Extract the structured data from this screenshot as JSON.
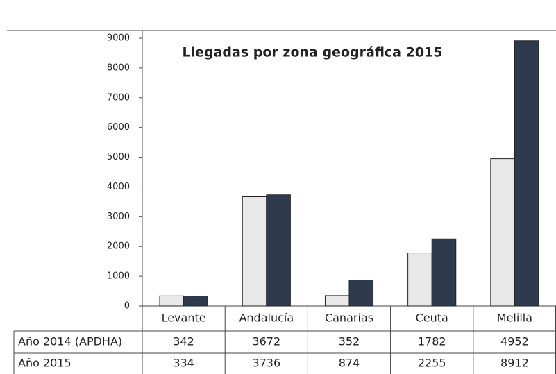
{
  "chart_data": {
    "type": "bar",
    "title": "Llegadas por zona geográfica 2015",
    "categories": [
      "Levante",
      "Andalucía",
      "Canarias",
      "Ceuta",
      "Melilla"
    ],
    "series": [
      {
        "name": "Año 2014 (APDHA)",
        "color": "#e8e8e8",
        "values": [
          342,
          3672,
          352,
          1782,
          4952
        ]
      },
      {
        "name": "Año 2015",
        "color": "#2e3b4e",
        "values": [
          334,
          3736,
          874,
          2255,
          8912
        ]
      }
    ],
    "ylim": [
      0,
      9000
    ],
    "yticks": [
      0,
      1000,
      2000,
      3000,
      4000,
      5000,
      6000,
      7000,
      8000,
      9000
    ],
    "grid": false
  }
}
